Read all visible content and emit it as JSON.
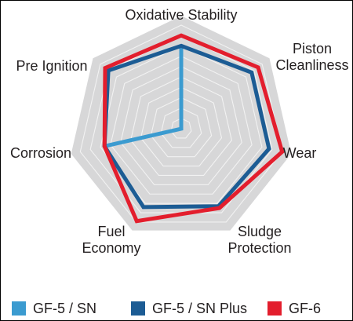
{
  "chart_data": {
    "type": "radar",
    "axes": [
      "Oxidative Stability",
      "Piston Cleanliness",
      "Wear",
      "Sludge Protection",
      "Fuel Economy",
      "Corrosion",
      "Pre Ignition"
    ],
    "axis_label_lines": [
      [
        "Oxidative Stability"
      ],
      [
        "Piston",
        "Cleanliness"
      ],
      [
        "Wear"
      ],
      [
        "Sludge",
        "Protection"
      ],
      [
        "Fuel",
        "Economy"
      ],
      [
        "Corrosion"
      ],
      [
        "Pre Ignition"
      ]
    ],
    "rlim": [
      0,
      10
    ],
    "rings": 10,
    "grid": true,
    "legend_position": "bottom",
    "series": [
      {
        "name": "GF-5 / SN",
        "color": "#3b9bd0",
        "values": [
          8.0,
          0.0,
          0.0,
          0.0,
          0.0,
          7.6,
          0.0
        ]
      },
      {
        "name": "GF-5 / SN Plus",
        "color": "#1c5c94",
        "values": [
          8.0,
          8.7,
          8.7,
          8.3,
          8.4,
          7.6,
          9.0
        ]
      },
      {
        "name": "GF-6",
        "color": "#e31e2d",
        "values": [
          9.0,
          9.5,
          10.0,
          8.5,
          9.9,
          7.6,
          9.4
        ]
      }
    ]
  },
  "background_color": "#d7d7d8",
  "grid_color": "#f2f2f2"
}
